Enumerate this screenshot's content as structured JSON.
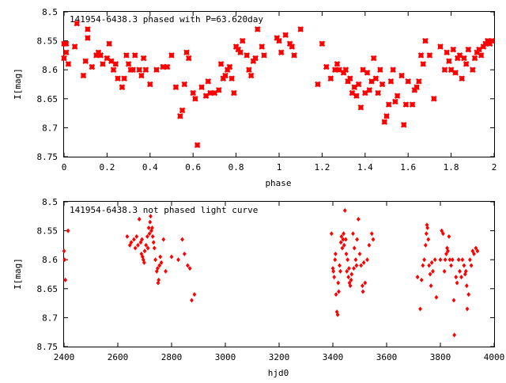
{
  "chart_data": [
    {
      "type": "scatter",
      "title": "141954-6438.3 phased with P=63.620day",
      "xlabel": "phase",
      "ylabel": "I[mag]",
      "xlim": [
        0,
        2
      ],
      "ylim": [
        8.5,
        8.75
      ],
      "y_inverted": true,
      "grid": false,
      "legend": "none",
      "marker": "star",
      "marker_color": "#ff0000",
      "xticks": [
        "0",
        "0.2",
        "0.4",
        "0.6",
        "0.8",
        "1",
        "1.2",
        "1.4",
        "1.6",
        "1.8",
        "2"
      ],
      "yticks": [
        "8.5",
        "8.55",
        "8.6",
        "8.65",
        "8.7",
        "8.75"
      ],
      "points": [
        [
          0.0,
          8.555
        ],
        [
          0.0,
          8.58
        ],
        [
          0.01,
          8.57
        ],
        [
          0.01,
          8.555
        ],
        [
          0.02,
          8.59
        ],
        [
          0.05,
          8.56
        ],
        [
          0.06,
          8.52
        ],
        [
          0.09,
          8.61
        ],
        [
          0.1,
          8.585
        ],
        [
          0.11,
          8.545
        ],
        [
          0.11,
          8.53
        ],
        [
          0.13,
          8.595
        ],
        [
          0.15,
          8.575
        ],
        [
          0.16,
          8.57
        ],
        [
          0.17,
          8.575
        ],
        [
          0.18,
          8.59
        ],
        [
          0.2,
          8.58
        ],
        [
          0.21,
          8.555
        ],
        [
          0.22,
          8.585
        ],
        [
          0.23,
          8.6
        ],
        [
          0.24,
          8.59
        ],
        [
          0.25,
          8.615
        ],
        [
          0.27,
          8.63
        ],
        [
          0.28,
          8.615
        ],
        [
          0.29,
          8.575
        ],
        [
          0.3,
          8.59
        ],
        [
          0.31,
          8.6
        ],
        [
          0.32,
          8.6
        ],
        [
          0.33,
          8.575
        ],
        [
          0.35,
          8.6
        ],
        [
          0.36,
          8.61
        ],
        [
          0.37,
          8.58
        ],
        [
          0.38,
          8.6
        ],
        [
          0.4,
          8.625
        ],
        [
          0.43,
          8.6
        ],
        [
          0.46,
          8.595
        ],
        [
          0.48,
          8.595
        ],
        [
          0.5,
          8.575
        ],
        [
          0.52,
          8.63
        ],
        [
          0.54,
          8.68
        ],
        [
          0.55,
          8.67
        ],
        [
          0.56,
          8.625
        ],
        [
          0.57,
          8.57
        ],
        [
          0.58,
          8.58
        ],
        [
          0.6,
          8.64
        ],
        [
          0.61,
          8.65
        ],
        [
          0.62,
          8.73
        ],
        [
          0.64,
          8.63
        ],
        [
          0.66,
          8.645
        ],
        [
          0.67,
          8.62
        ],
        [
          0.68,
          8.64
        ],
        [
          0.7,
          8.64
        ],
        [
          0.72,
          8.635
        ],
        [
          0.73,
          8.59
        ],
        [
          0.74,
          8.615
        ],
        [
          0.75,
          8.61
        ],
        [
          0.76,
          8.6
        ],
        [
          0.77,
          8.595
        ],
        [
          0.78,
          8.615
        ],
        [
          0.79,
          8.64
        ],
        [
          0.8,
          8.56
        ],
        [
          0.81,
          8.565
        ],
        [
          0.82,
          8.57
        ],
        [
          0.83,
          8.55
        ],
        [
          0.85,
          8.575
        ],
        [
          0.86,
          8.6
        ],
        [
          0.87,
          8.61
        ],
        [
          0.88,
          8.585
        ],
        [
          0.89,
          8.58
        ],
        [
          0.9,
          8.53
        ],
        [
          0.92,
          8.56
        ],
        [
          0.93,
          8.575
        ],
        [
          0.99,
          8.545
        ],
        [
          1.0,
          8.55
        ],
        [
          1.01,
          8.57
        ],
        [
          1.03,
          8.54
        ],
        [
          1.05,
          8.555
        ],
        [
          1.06,
          8.56
        ],
        [
          1.07,
          8.575
        ],
        [
          1.1,
          8.53
        ],
        [
          1.18,
          8.625
        ],
        [
          1.2,
          8.555
        ],
        [
          1.22,
          8.595
        ],
        [
          1.24,
          8.615
        ],
        [
          1.26,
          8.6
        ],
        [
          1.27,
          8.59
        ],
        [
          1.28,
          8.6
        ],
        [
          1.3,
          8.605
        ],
        [
          1.31,
          8.6
        ],
        [
          1.32,
          8.62
        ],
        [
          1.33,
          8.615
        ],
        [
          1.34,
          8.64
        ],
        [
          1.35,
          8.63
        ],
        [
          1.36,
          8.645
        ],
        [
          1.37,
          8.625
        ],
        [
          1.38,
          8.665
        ],
        [
          1.39,
          8.6
        ],
        [
          1.4,
          8.64
        ],
        [
          1.41,
          8.605
        ],
        [
          1.42,
          8.635
        ],
        [
          1.43,
          8.62
        ],
        [
          1.44,
          8.58
        ],
        [
          1.45,
          8.615
        ],
        [
          1.46,
          8.64
        ],
        [
          1.47,
          8.6
        ],
        [
          1.48,
          8.625
        ],
        [
          1.49,
          8.69
        ],
        [
          1.5,
          8.68
        ],
        [
          1.51,
          8.66
        ],
        [
          1.52,
          8.62
        ],
        [
          1.53,
          8.6
        ],
        [
          1.54,
          8.655
        ],
        [
          1.55,
          8.645
        ],
        [
          1.57,
          8.61
        ],
        [
          1.58,
          8.695
        ],
        [
          1.59,
          8.66
        ],
        [
          1.6,
          8.62
        ],
        [
          1.62,
          8.66
        ],
        [
          1.63,
          8.635
        ],
        [
          1.64,
          8.63
        ],
        [
          1.65,
          8.62
        ],
        [
          1.66,
          8.575
        ],
        [
          1.67,
          8.59
        ],
        [
          1.68,
          8.55
        ],
        [
          1.7,
          8.575
        ],
        [
          1.72,
          8.65
        ],
        [
          1.75,
          8.56
        ],
        [
          1.77,
          8.6
        ],
        [
          1.78,
          8.57
        ],
        [
          1.79,
          8.585
        ],
        [
          1.8,
          8.6
        ],
        [
          1.81,
          8.565
        ],
        [
          1.82,
          8.605
        ],
        [
          1.83,
          8.58
        ],
        [
          1.84,
          8.575
        ],
        [
          1.85,
          8.615
        ],
        [
          1.86,
          8.58
        ],
        [
          1.87,
          8.59
        ],
        [
          1.88,
          8.565
        ],
        [
          1.9,
          8.6
        ],
        [
          1.91,
          8.58
        ],
        [
          1.92,
          8.57
        ],
        [
          1.93,
          8.565
        ],
        [
          1.94,
          8.575
        ],
        [
          1.95,
          8.56
        ],
        [
          1.96,
          8.555
        ],
        [
          1.97,
          8.55
        ],
        [
          1.98,
          8.555
        ],
        [
          1.99,
          8.55
        ]
      ]
    },
    {
      "type": "scatter",
      "title": "141954-6438.3 not phased light curve",
      "xlabel": "hjd0",
      "ylabel": "I[mag]",
      "xlim": [
        2400,
        4000
      ],
      "ylim": [
        8.5,
        8.75
      ],
      "y_inverted": true,
      "grid": false,
      "legend": "none",
      "marker": "diamond",
      "marker_color": "#ff0000",
      "xticks": [
        "2400",
        "2600",
        "2800",
        "3000",
        "3200",
        "3400",
        "3600",
        "3800",
        "4000"
      ],
      "yticks": [
        "8.5",
        "8.55",
        "8.6",
        "8.65",
        "8.7",
        "8.75"
      ],
      "points": [
        [
          2400,
          8.585
        ],
        [
          2402,
          8.6
        ],
        [
          2405,
          8.635
        ],
        [
          2415,
          8.55
        ],
        [
          2635,
          8.56
        ],
        [
          2645,
          8.575
        ],
        [
          2650,
          8.57
        ],
        [
          2660,
          8.565
        ],
        [
          2665,
          8.58
        ],
        [
          2670,
          8.56
        ],
        [
          2675,
          8.575
        ],
        [
          2680,
          8.53
        ],
        [
          2685,
          8.57
        ],
        [
          2688,
          8.59
        ],
        [
          2690,
          8.565
        ],
        [
          2692,
          8.595
        ],
        [
          2695,
          8.6
        ],
        [
          2698,
          8.605
        ],
        [
          2700,
          8.585
        ],
        [
          2705,
          8.575
        ],
        [
          2710,
          8.56
        ],
        [
          2712,
          8.58
        ],
        [
          2715,
          8.545
        ],
        [
          2718,
          8.555
        ],
        [
          2720,
          8.535
        ],
        [
          2722,
          8.525
        ],
        [
          2725,
          8.55
        ],
        [
          2728,
          8.545
        ],
        [
          2730,
          8.56
        ],
        [
          2733,
          8.57
        ],
        [
          2736,
          8.58
        ],
        [
          2740,
          8.6
        ],
        [
          2745,
          8.62
        ],
        [
          2748,
          8.615
        ],
        [
          2750,
          8.64
        ],
        [
          2752,
          8.635
        ],
        [
          2755,
          8.61
        ],
        [
          2758,
          8.595
        ],
        [
          2762,
          8.605
        ],
        [
          2770,
          8.565
        ],
        [
          2778,
          8.62
        ],
        [
          2800,
          8.595
        ],
        [
          2825,
          8.6
        ],
        [
          2840,
          8.565
        ],
        [
          2848,
          8.59
        ],
        [
          2860,
          8.61
        ],
        [
          2868,
          8.615
        ],
        [
          2875,
          8.67
        ],
        [
          2885,
          8.66
        ],
        [
          3395,
          8.555
        ],
        [
          3400,
          8.615
        ],
        [
          3402,
          8.62
        ],
        [
          3405,
          8.63
        ],
        [
          3408,
          8.6
        ],
        [
          3410,
          8.59
        ],
        [
          3412,
          8.66
        ],
        [
          3415,
          8.69
        ],
        [
          3418,
          8.695
        ],
        [
          3420,
          8.64
        ],
        [
          3422,
          8.655
        ],
        [
          3425,
          8.61
        ],
        [
          3428,
          8.62
        ],
        [
          3430,
          8.57
        ],
        [
          3432,
          8.56
        ],
        [
          3435,
          8.58
        ],
        [
          3438,
          8.565
        ],
        [
          3440,
          8.555
        ],
        [
          3442,
          8.575
        ],
        [
          3445,
          8.515
        ],
        [
          3448,
          8.565
        ],
        [
          3450,
          8.59
        ],
        [
          3452,
          8.62
        ],
        [
          3455,
          8.6
        ],
        [
          3458,
          8.63
        ],
        [
          3460,
          8.615
        ],
        [
          3462,
          8.64
        ],
        [
          3465,
          8.645
        ],
        [
          3468,
          8.635
        ],
        [
          3470,
          8.625
        ],
        [
          3475,
          8.555
        ],
        [
          3478,
          8.615
        ],
        [
          3480,
          8.58
        ],
        [
          3485,
          8.6
        ],
        [
          3488,
          8.61
        ],
        [
          3490,
          8.565
        ],
        [
          3495,
          8.53
        ],
        [
          3500,
          8.59
        ],
        [
          3505,
          8.61
        ],
        [
          3510,
          8.645
        ],
        [
          3512,
          8.655
        ],
        [
          3515,
          8.605
        ],
        [
          3520,
          8.64
        ],
        [
          3528,
          8.6
        ],
        [
          3535,
          8.575
        ],
        [
          3545,
          8.555
        ],
        [
          3550,
          8.565
        ],
        [
          3715,
          8.63
        ],
        [
          3725,
          8.685
        ],
        [
          3730,
          8.635
        ],
        [
          3735,
          8.61
        ],
        [
          3740,
          8.6
        ],
        [
          3745,
          8.575
        ],
        [
          3748,
          8.555
        ],
        [
          3750,
          8.54
        ],
        [
          3752,
          8.545
        ],
        [
          3755,
          8.565
        ],
        [
          3758,
          8.61
        ],
        [
          3762,
          8.625
        ],
        [
          3765,
          8.645
        ],
        [
          3768,
          8.605
        ],
        [
          3772,
          8.62
        ],
        [
          3780,
          8.6
        ],
        [
          3785,
          8.665
        ],
        [
          3800,
          8.6
        ],
        [
          3805,
          8.55
        ],
        [
          3810,
          8.555
        ],
        [
          3815,
          8.62
        ],
        [
          3818,
          8.6
        ],
        [
          3822,
          8.59
        ],
        [
          3825,
          8.58
        ],
        [
          3828,
          8.585
        ],
        [
          3832,
          8.56
        ],
        [
          3835,
          8.6
        ],
        [
          3840,
          8.61
        ],
        [
          3845,
          8.6
        ],
        [
          3850,
          8.67
        ],
        [
          3852,
          8.73
        ],
        [
          3858,
          8.63
        ],
        [
          3862,
          8.64
        ],
        [
          3868,
          8.6
        ],
        [
          3872,
          8.62
        ],
        [
          3878,
          8.63
        ],
        [
          3882,
          8.6
        ],
        [
          3888,
          8.61
        ],
        [
          3892,
          8.625
        ],
        [
          3895,
          8.62
        ],
        [
          3898,
          8.645
        ],
        [
          3900,
          8.685
        ],
        [
          3905,
          8.66
        ],
        [
          3910,
          8.6
        ],
        [
          3915,
          8.61
        ],
        [
          3920,
          8.585
        ],
        [
          3925,
          8.59
        ],
        [
          3932,
          8.58
        ],
        [
          3938,
          8.585
        ]
      ]
    }
  ]
}
